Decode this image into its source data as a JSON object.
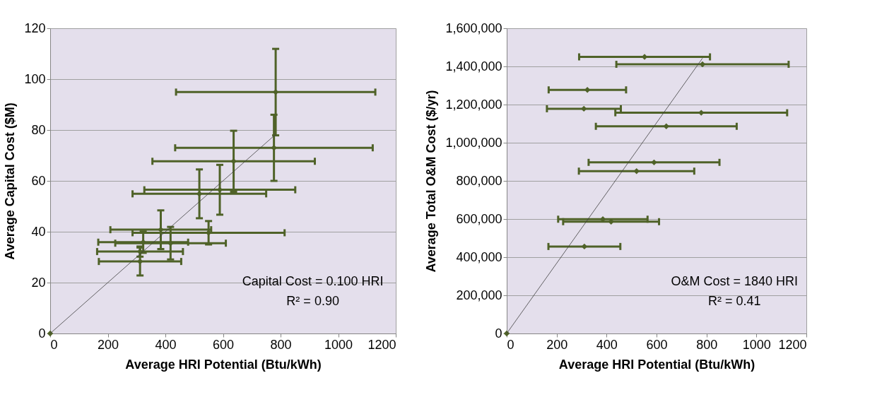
{
  "chart_data": [
    {
      "type": "scatter",
      "xlabel": "Average HRI Potential (Btu/kWh)",
      "ylabel": "Average Capital Cost ($M)",
      "xlim": [
        0,
        1200
      ],
      "xticks": [
        0,
        200,
        400,
        600,
        800,
        1000,
        1200
      ],
      "ylim": [
        0,
        120
      ],
      "yticks": [
        0,
        20,
        40,
        60,
        80,
        100,
        120
      ],
      "grid": "y",
      "annotations": [
        "Capital Cost = 0.100 HRI",
        "R² = 0.90"
      ],
      "series": [
        {
          "marker": "diamond",
          "color": "#4f6228",
          "x": [
            783,
            777,
            637,
            589,
            518,
            384,
            550,
            323,
            418,
            312,
            312,
            0
          ],
          "values": [
            94.9,
            73,
            67.7,
            56.5,
            54.9,
            40.8,
            39.6,
            35.9,
            35.5,
            32.2,
            28.3,
            0
          ],
          "errors": [
            17,
            13,
            12,
            9.8,
            9.6,
            7.6,
            4.6,
            4.2,
            6.4,
            2,
            5.5,
            null
          ],
          "xerrors": [
            346,
            343,
            282,
            262,
            232,
            175,
            264,
            156,
            192,
            149,
            143,
            null
          ]
        },
        {
          "type": "line",
          "color": "#404040",
          "x": [
            0,
            783
          ],
          "values": [
            0,
            78.3
          ]
        }
      ]
    },
    {
      "type": "scatter",
      "xlabel": "Average HRI Potential (Btu/kWh)",
      "ylabel": "Average Total O&M Cost ($/yr)",
      "xlim": [
        0,
        1200
      ],
      "xticks": [
        0,
        200,
        400,
        600,
        800,
        1000,
        1200
      ],
      "ylim": [
        0,
        1600000
      ],
      "yticks": [
        {
          "value": 0,
          "label": "0"
        },
        {
          "value": 200000,
          "label": "200,000"
        },
        {
          "value": 400000,
          "label": "400,000"
        },
        {
          "value": 600000,
          "label": "600,000"
        },
        {
          "value": 800000,
          "label": "800,000"
        },
        {
          "value": 1000000,
          "label": "1,000,000"
        },
        {
          "value": 1200000,
          "label": "1,200,000"
        },
        {
          "value": 1400000,
          "label": "1,400,000"
        },
        {
          "value": 1600000,
          "label": "1,600,000"
        }
      ],
      "grid": "y",
      "annotations": [
        "O&M Cost = 1840 HRI",
        "R² = 0.41"
      ],
      "series": [
        {
          "marker": "diamond",
          "color": "#4f6228",
          "x": [
            552,
            784,
            323,
            309,
            779,
            639,
            590,
            520,
            385,
            418,
            311,
            0
          ],
          "values": [
            1450000,
            1411000,
            1277000,
            1178000,
            1157000,
            1086000,
            897000,
            851000,
            599000,
            586000,
            456000,
            0
          ],
          "xerrors": [
            262,
            345,
            155,
            148,
            344,
            282,
            262,
            231,
            179,
            192,
            144,
            null
          ]
        },
        {
          "type": "line",
          "color": "#404040",
          "x": [
            0,
            784
          ],
          "values": [
            0,
            1443000
          ]
        }
      ]
    }
  ]
}
